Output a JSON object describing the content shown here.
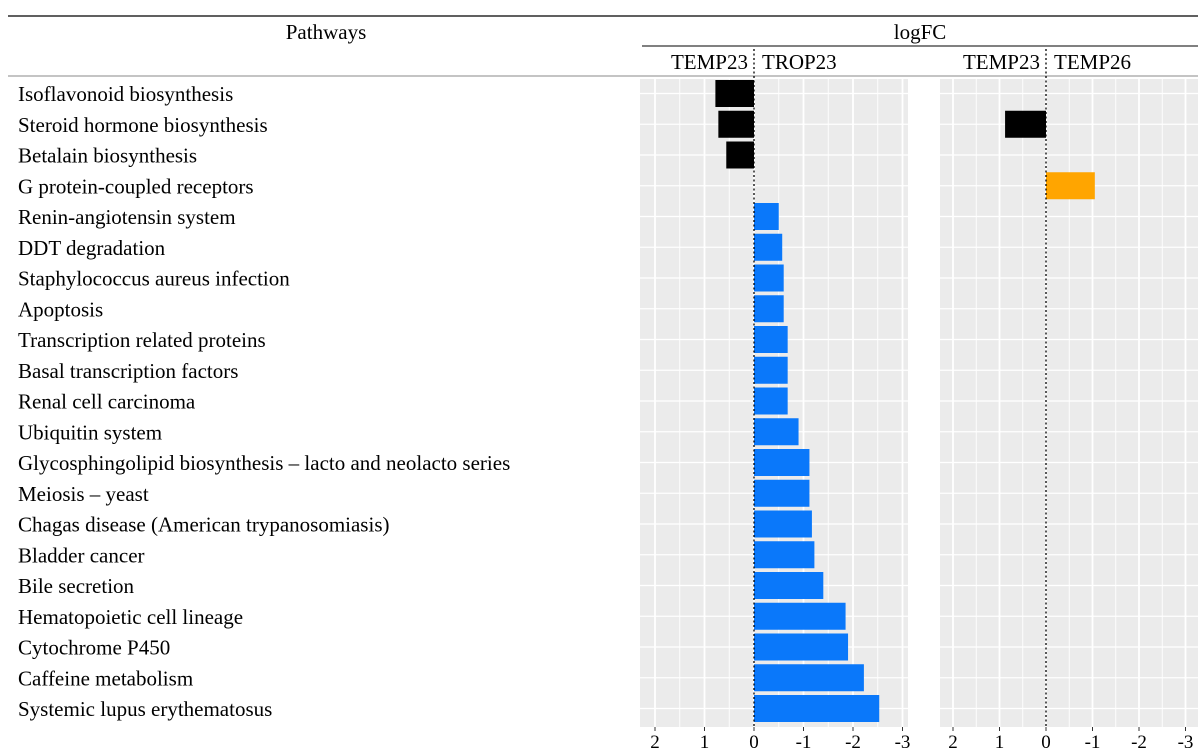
{
  "table": {
    "pathways_header": "Pathways",
    "logfc_header": "logFC"
  },
  "chart_data": [
    {
      "type": "bar",
      "orientation": "horizontal",
      "left_label": "TEMP23",
      "right_label": "TROP23",
      "xlim": [
        2,
        -3
      ],
      "ticks": [
        "2",
        "1",
        "0",
        "-1",
        "-2",
        "-3"
      ],
      "x_reversed": true,
      "grid": true,
      "categories": [
        "Isoflavonoid biosynthesis",
        "Steroid hormone biosynthesis",
        "Betalain biosynthesis",
        "G protein-coupled receptors",
        "Renin-angiotensin system",
        "DDT degradation",
        "Staphylococcus aureus infection",
        "Apoptosis",
        "Transcription related proteins",
        "Basal transcription factors",
        "Renal cell carcinoma",
        "Ubiquitin system",
        "Glycosphingolipid biosynthesis – lacto and neolacto series",
        "Meiosis – yeast",
        "Chagas disease (American trypanosomiasis)",
        "Bladder cancer",
        "Bile secretion",
        "Hematopoietic cell lineage",
        "Cytochrome P450",
        "Caffeine metabolism",
        "Systemic lupus erythematosus"
      ],
      "values": [
        0.78,
        0.72,
        0.56,
        null,
        -0.5,
        -0.57,
        -0.6,
        -0.6,
        -0.68,
        -0.68,
        -0.68,
        -0.9,
        -1.12,
        -1.12,
        -1.17,
        -1.22,
        -1.4,
        -1.85,
        -1.9,
        -2.22,
        -2.53
      ],
      "colors": [
        "#000000",
        "#000000",
        "#000000",
        null,
        "#0a78fa",
        "#0a78fa",
        "#0a78fa",
        "#0a78fa",
        "#0a78fa",
        "#0a78fa",
        "#0a78fa",
        "#0a78fa",
        "#0a78fa",
        "#0a78fa",
        "#0a78fa",
        "#0a78fa",
        "#0a78fa",
        "#0a78fa",
        "#0a78fa",
        "#0a78fa",
        "#0a78fa"
      ]
    },
    {
      "type": "bar",
      "orientation": "horizontal",
      "left_label": "TEMP23",
      "right_label": "TEMP26",
      "xlim": [
        2,
        -3
      ],
      "ticks": [
        "2",
        "1",
        "0",
        "-1",
        "-2",
        "-3"
      ],
      "x_reversed": true,
      "grid": true,
      "values": [
        null,
        0.88,
        null,
        -1.05,
        null,
        null,
        null,
        null,
        null,
        null,
        null,
        null,
        null,
        null,
        null,
        null,
        null,
        null,
        null,
        null,
        null
      ],
      "colors": [
        null,
        "#000000",
        null,
        "#ffa500",
        null,
        null,
        null,
        null,
        null,
        null,
        null,
        null,
        null,
        null,
        null,
        null,
        null,
        null,
        null,
        null,
        null
      ]
    }
  ]
}
